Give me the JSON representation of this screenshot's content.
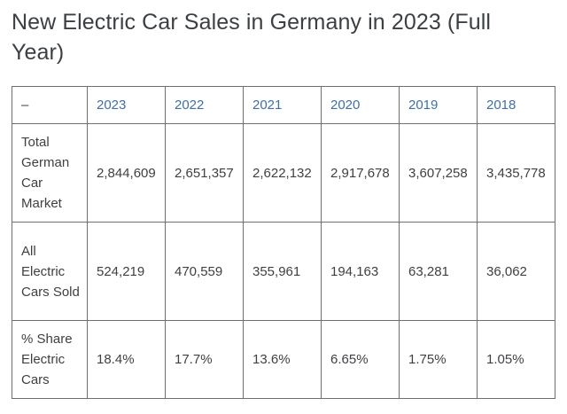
{
  "page": {
    "title": "New Electric Car Sales in Germany in 2023 (Full Year)"
  },
  "table": {
    "header": {
      "corner": "–",
      "years": [
        "2023",
        "2022",
        "2021",
        "2020",
        "2019",
        "2018"
      ]
    },
    "rows": [
      {
        "label": "Total German Car Market",
        "values": [
          "2,844,609",
          "2,651,357",
          "2,622,132",
          "2,917,678",
          "3,607,258",
          "3,435,778"
        ]
      },
      {
        "label": "All Electric Cars Sold",
        "values": [
          "524,219",
          "470,559",
          "355,961",
          "194,163",
          "63,281",
          "36,062"
        ]
      },
      {
        "label": "% Share Electric Cars",
        "values": [
          "18.4%",
          "17.7%",
          "13.6%",
          "6.65%",
          "1.75%",
          "1.05%"
        ]
      }
    ]
  },
  "colors": {
    "title_text": "#3c4043",
    "cell_text": "#3f3f44",
    "year_header_link": "#3e6fa8",
    "table_border": "#6f6f6f",
    "background": "#ffffff"
  },
  "chart_data": {
    "type": "table",
    "title": "New Electric Car Sales in Germany in 2023 (Full Year)",
    "columns": [
      "–",
      "2023",
      "2022",
      "2021",
      "2020",
      "2019",
      "2018"
    ],
    "rows": [
      [
        "Total German Car Market",
        "2,844,609",
        "2,651,357",
        "2,622,132",
        "2,917,678",
        "3,607,258",
        "3,435,778"
      ],
      [
        "All Electric Cars Sold",
        "524,219",
        "470,559",
        "355,961",
        "194,163",
        "63,281",
        "36,062"
      ],
      [
        "% Share Electric Cars",
        "18.4%",
        "17.7%",
        "13.6%",
        "6.65%",
        "1.75%",
        "1.05%"
      ]
    ]
  }
}
